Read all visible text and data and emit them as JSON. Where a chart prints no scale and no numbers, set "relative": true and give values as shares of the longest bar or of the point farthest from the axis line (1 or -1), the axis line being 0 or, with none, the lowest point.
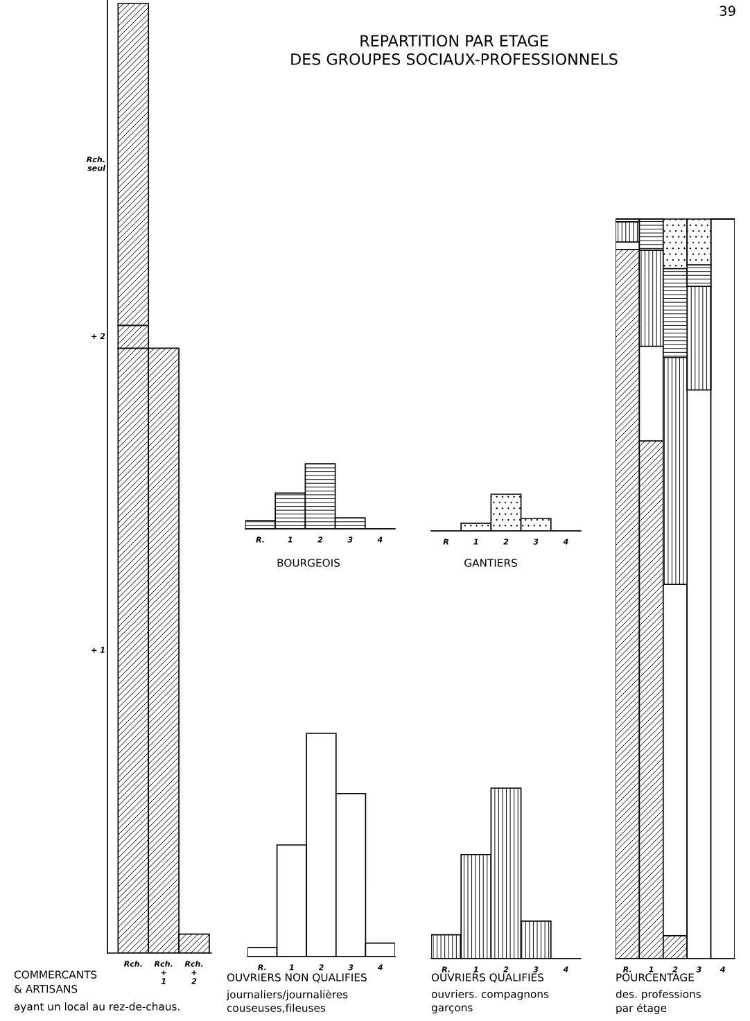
{
  "chart_data": [
    {
      "type": "bar",
      "relative": true,
      "stacked": true,
      "categories": [
        "Rch.",
        "Rch.\n+\n1",
        "Rch.\n+\n2"
      ],
      "xlabel": "COMMERCANTS\n& ARTISANS",
      "annotations": [
        "ayant un local au rez-de-chaus.",
        "39",
        "REPARTITION PAR ETAGE\nDES GROUPES SOCIAUX-PROFESSIONNELS"
      ],
      "series": [
        {
          "name": "+ 1",
          "values": [
            0.637,
            0.637,
            0.02
          ]
        },
        {
          "name": "+ 2",
          "values": [
            0.024,
            null,
            null
          ]
        },
        {
          "name": "Rch.\nseul",
          "values": [
            0.339,
            null,
            null
          ]
        }
      ]
    },
    {
      "type": "bar",
      "relative": true,
      "categories": [
        "R.",
        "1",
        "2",
        "3",
        "4"
      ],
      "xlabel": "BOURGEOIS",
      "values": [
        0.13,
        0.55,
        1,
        0.17,
        0
      ]
    },
    {
      "type": "bar",
      "relative": true,
      "categories": [
        "R",
        "1",
        "2",
        "3",
        "4"
      ],
      "xlabel": "GANTIERS",
      "values": [
        0,
        0.21,
        1,
        0.34,
        0
      ]
    },
    {
      "type": "bar",
      "relative": true,
      "categories": [
        "R.",
        "1",
        "2",
        "3",
        "4"
      ],
      "xlabel": "OUVRIERS NON QUALIFIES",
      "annotations": [
        "journaliers/journalières\ncouseuses,fileuses"
      ],
      "values": [
        0.04,
        0.5,
        1,
        0.73,
        0.06
      ]
    },
    {
      "type": "bar",
      "relative": true,
      "categories": [
        "R.",
        "1",
        "2",
        "3",
        "4"
      ],
      "xlabel": "OUVRIERS QUALIFIES",
      "annotations": [
        "ouvriers. compagnons\ngarçons"
      ],
      "values": [
        0.14,
        0.61,
        1,
        0.22,
        0
      ]
    },
    {
      "type": "bar",
      "relative": true,
      "stacked": true,
      "categories": [
        "R.",
        "1",
        "2",
        "3",
        "4"
      ],
      "xlabel": "POURCENTAGE",
      "annotations": [
        "des. professions\npar étage"
      ],
      "series": [
        {
          "values": [
            0.959,
            0.7,
            0.031,
            0,
            0
          ]
        },
        {
          "values": [
            0.01,
            0.128,
            0.475,
            0.769,
            1
          ]
        },
        {
          "values": [
            0.027,
            0.13,
            0.307,
            0.14,
            0
          ]
        },
        {
          "values": [
            0.004,
            0.042,
            0.12,
            0.029,
            0
          ]
        },
        {
          "values": [
            0,
            0,
            0.067,
            0.062,
            0
          ]
        }
      ]
    }
  ]
}
